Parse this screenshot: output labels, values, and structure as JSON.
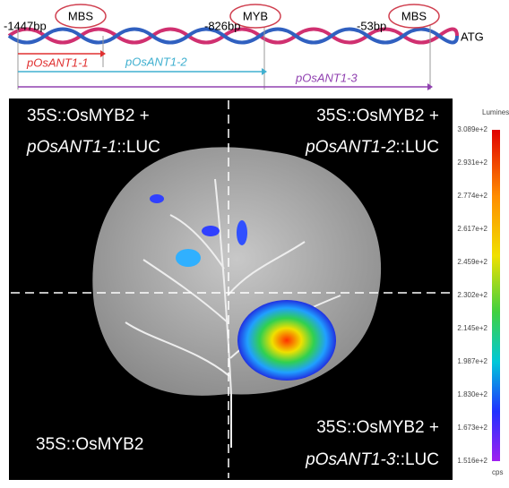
{
  "promoter_map": {
    "positions": [
      "-1447bp",
      "-826bp",
      "-53bp"
    ],
    "elements": [
      "MBS",
      "MYB",
      "MBS"
    ],
    "start_codon": "ATG",
    "fragments": [
      "pOsANT1-1",
      "pOsANT1-2",
      "pOsANT1-3"
    ]
  },
  "panel": {
    "top_left": {
      "line1": "35S::OsMYB2 +",
      "promoter": "pOsANT1-1",
      "suffix": "::LUC"
    },
    "top_right": {
      "line1": "35S::OsMYB2 +",
      "promoter": "pOsANT1-2",
      "suffix": "::LUC"
    },
    "bottom_right": {
      "line1": "35S::OsMYB2 +",
      "promoter": "pOsANT1-3",
      "suffix": "::LUC"
    },
    "bottom_left": "35S::OsMYB2"
  },
  "colorbar": {
    "title": "Luminescen",
    "labels": [
      "3.089e+2",
      "2.931e+2",
      "2.774e+2",
      "2.617e+2",
      "2.459e+2",
      "2.302e+2",
      "2.145e+2",
      "1.987e+2",
      "1.830e+2",
      "1.673e+2",
      "1.516e+2"
    ],
    "unit": "cps"
  }
}
